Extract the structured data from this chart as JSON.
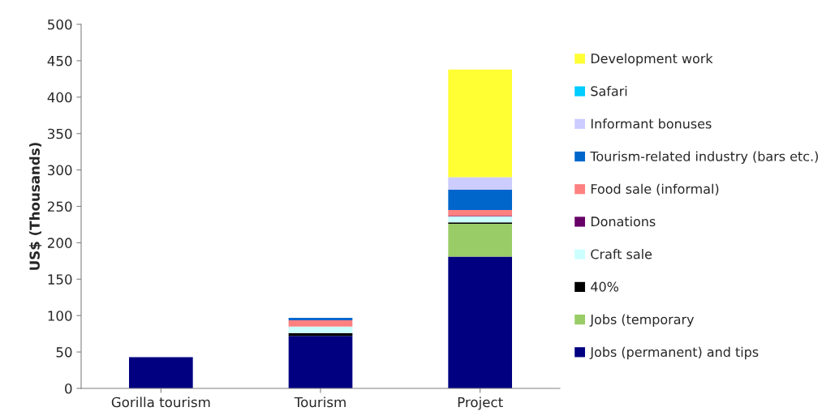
{
  "chart_data": {
    "type": "bar",
    "stacked": true,
    "ylabel": "US$ (Thousands)",
    "categories": [
      "Gorilla tourism",
      "Tourism",
      "Project"
    ],
    "series": [
      {
        "name": "Jobs (permanent) and tips",
        "color": "#000080",
        "values": [
          43,
          72,
          181
        ]
      },
      {
        "name": "Jobs (temporary",
        "color": "#99cc66",
        "values": [
          0,
          0,
          45
        ]
      },
      {
        "name": "40%",
        "color": "#000000",
        "values": [
          0,
          4,
          2
        ]
      },
      {
        "name": "Craft sale",
        "color": "#ccffff",
        "values": [
          0,
          9,
          8
        ]
      },
      {
        "name": "Donations",
        "color": "#660066",
        "values": [
          0,
          0,
          1
        ]
      },
      {
        "name": "Food sale (informal)",
        "color": "#ff8080",
        "values": [
          0,
          8.5,
          8
        ]
      },
      {
        "name": "Tourism-related industry (bars etc.)",
        "color": "#0066cc",
        "values": [
          0,
          3.5,
          28
        ]
      },
      {
        "name": "Informant bonuses",
        "color": "#ccccff",
        "values": [
          0,
          0,
          17
        ]
      },
      {
        "name": "Safari",
        "color": "#00ccff",
        "values": [
          0,
          0,
          0
        ]
      },
      {
        "name": "Development work",
        "color": "#ffff33",
        "values": [
          0,
          0,
          148
        ]
      }
    ],
    "ylim": [
      0,
      500
    ],
    "yticks": [
      0,
      50,
      100,
      150,
      200,
      250,
      300,
      350,
      400,
      450,
      500
    ],
    "grid": false,
    "legend": "right"
  }
}
